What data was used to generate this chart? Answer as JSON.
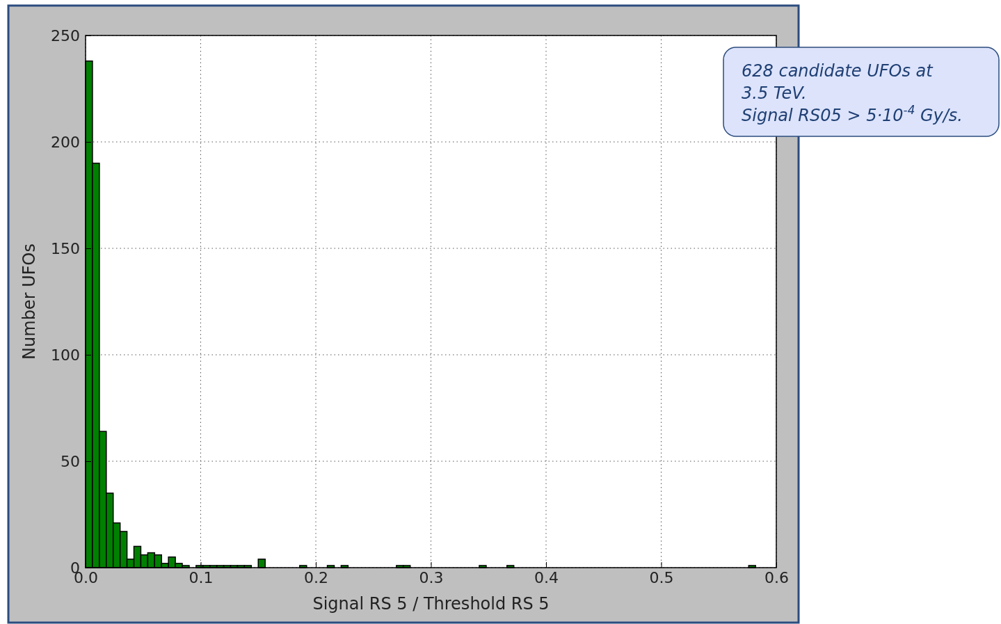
{
  "chart_data": {
    "type": "histogram",
    "xlabel": "Signal RS 5 / Threshold RS 5",
    "ylabel": "Number UFOs",
    "bins": [
      0,
      0.006,
      0.012,
      0.018,
      0.024,
      0.03,
      0.036,
      0.042,
      0.048,
      0.054,
      0.06,
      0.066,
      0.072,
      0.078,
      0.084,
      0.09,
      0.096,
      0.102,
      0.108,
      0.114,
      0.12,
      0.126,
      0.132,
      0.138,
      0.144,
      0.15,
      0.156,
      0.162,
      0.168,
      0.174,
      0.18,
      0.186,
      0.192,
      0.198,
      0.204,
      0.21,
      0.216,
      0.222,
      0.228,
      0.234,
      0.24,
      0.246,
      0.252,
      0.258,
      0.264,
      0.27,
      0.276,
      0.282,
      0.288,
      0.294,
      0.3,
      0.306,
      0.312,
      0.318,
      0.324,
      0.33,
      0.336,
      0.342,
      0.348,
      0.354,
      0.36,
      0.366,
      0.372,
      0.378,
      0.384,
      0.39,
      0.396,
      0.402,
      0.408,
      0.414,
      0.42,
      0.426,
      0.432,
      0.438,
      0.444,
      0.45,
      0.456,
      0.462,
      0.468,
      0.474,
      0.48,
      0.486,
      0.492,
      0.498,
      0.504,
      0.51,
      0.516,
      0.522,
      0.528,
      0.534,
      0.54,
      0.546,
      0.552,
      0.558,
      0.564,
      0.57,
      0.576,
      0.582,
      0.588,
      0.594,
      0.6
    ],
    "values": [
      238,
      190,
      64,
      35,
      21,
      17,
      4,
      10,
      6,
      7,
      6,
      2,
      5,
      2,
      1,
      0,
      1,
      1,
      1,
      1,
      1,
      1,
      1,
      1,
      0,
      4,
      0,
      0,
      0,
      0,
      0,
      1,
      0,
      0,
      0,
      1,
      0,
      1,
      0,
      0,
      0,
      0,
      0,
      0,
      0,
      1,
      1,
      0,
      0,
      0,
      0,
      0,
      0,
      0,
      0,
      0,
      0,
      1,
      0,
      0,
      0,
      1,
      0,
      0,
      0,
      0,
      0,
      0,
      0,
      0,
      0,
      0,
      0,
      0,
      0,
      0,
      0,
      0,
      0,
      0,
      0,
      0,
      0,
      0,
      0,
      0,
      0,
      0,
      0,
      0,
      0,
      0,
      0,
      0,
      0,
      0,
      1,
      0,
      0,
      0
    ],
    "color": "#008000",
    "xlim": [
      0,
      0.6
    ],
    "xticks": [
      {
        "value": 0,
        "label": "0.0"
      },
      0.1,
      0.2,
      0.3,
      0.4,
      0.5,
      0.6
    ],
    "ylim": [
      0,
      250
    ],
    "yticks": [
      0,
      50,
      100,
      150,
      200,
      250
    ],
    "grid": true,
    "annotations": [
      "628 candidate UFOs at\n3.5 TeV.\nSignal RS05 > 5·10$^{-4}$ Gy/s."
    ]
  }
}
